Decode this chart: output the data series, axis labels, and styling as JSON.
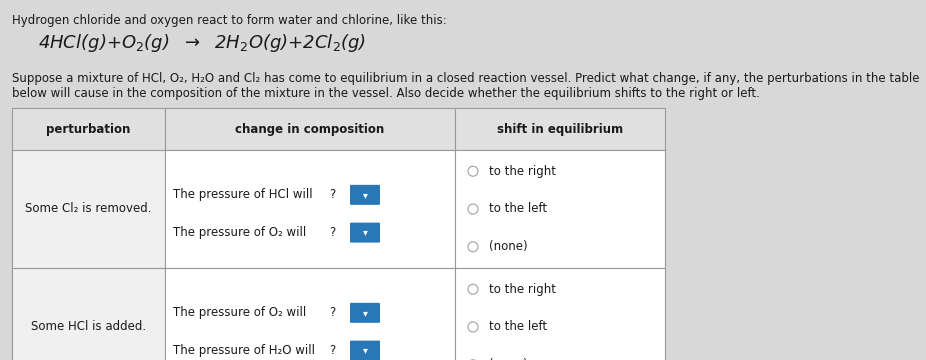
{
  "bg_color": "#d8d8d8",
  "title_line1": "Hydrogen chloride and oxygen react to form water and chlorine, like this:",
  "body_text_line1": "Suppose a mixture of HCl, O₂, H₂O and Cl₂ has come to equilibrium in a closed reaction vessel. Predict what change, if any, the perturbations in the table",
  "body_text_line2": "below will cause in the composition of the mixture in the vessel. Also decide whether the equilibrium shifts to the right or left.",
  "col_headers": [
    "perturbation",
    "change in composition",
    "shift in equilibrium"
  ],
  "row1_perturbation": "Some Cl₂ is removed.",
  "row1_changes": [
    "The pressure of HCl will",
    "The pressure of O₂ will"
  ],
  "row1_shift": [
    "to the right",
    "to the left",
    "(none)"
  ],
  "row2_perturbation": "Some HCl is added.",
  "row2_changes": [
    "The pressure of O₂ will",
    "The pressure of H₂O will"
  ],
  "row2_shift": [
    "to the right",
    "to the left",
    "(none)"
  ],
  "table_bg_light": "#f0f0f0",
  "table_bg_white": "#ffffff",
  "table_border": "#999999",
  "header_bg": "#e0e0e0",
  "dropdown_color": "#2878b8",
  "button_color": "#1a6b5e",
  "text_color": "#1a1a1a",
  "radio_color": "#aaaaaa",
  "font_size": 8.5,
  "eq_font_size": 13
}
